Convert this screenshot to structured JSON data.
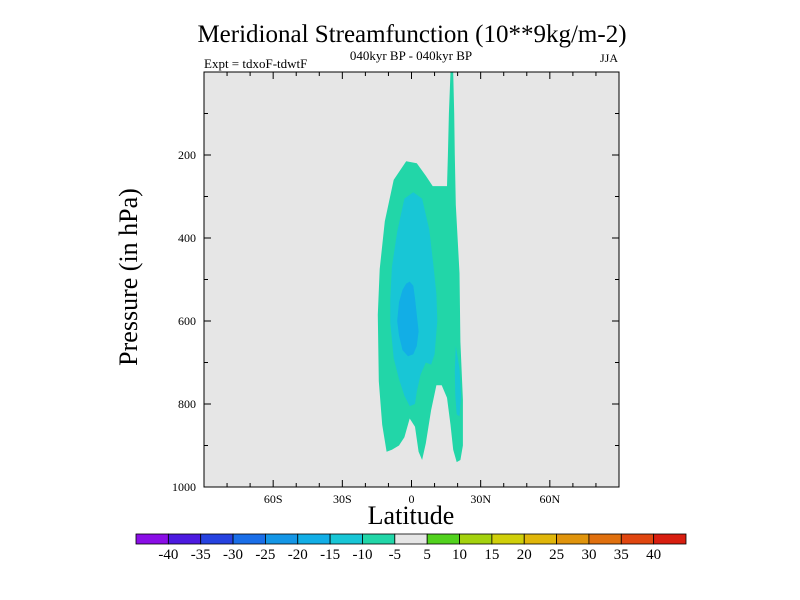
{
  "chart_data": {
    "type": "contour",
    "title": "Meridional Streamfunction (10**9kg/m-2)",
    "subtitle_center": "040kyr BP - 040kyr BP",
    "subtitle_left": "Expt = tdxoF-tdwtF",
    "subtitle_right": "JJA",
    "xlabel": "Latitude",
    "ylabel": "Pressure (in hPa)",
    "xlim": [
      -90,
      90
    ],
    "ylim": [
      0,
      1000
    ],
    "y_reversed": true,
    "x_ticks": [
      {
        "value": -60,
        "label": "60S"
      },
      {
        "value": -30,
        "label": "30S"
      },
      {
        "value": 0,
        "label": "0"
      },
      {
        "value": 30,
        "label": "30N"
      },
      {
        "value": 60,
        "label": "60N"
      }
    ],
    "y_ticks": [
      {
        "value": 200,
        "label": "200"
      },
      {
        "value": 400,
        "label": "400"
      },
      {
        "value": 600,
        "label": "600"
      },
      {
        "value": 800,
        "label": "800"
      },
      {
        "value": 1000,
        "label": "1000"
      }
    ],
    "background_color": "#e6e6e6",
    "contour_regions": [
      {
        "level_range": "-10 to -5",
        "color": "#22d6a8",
        "polygon": [
          [
            -14.6,
            585
          ],
          [
            -13.8,
            475
          ],
          [
            -11.6,
            360
          ],
          [
            -7.7,
            260
          ],
          [
            -2.3,
            215
          ],
          [
            2.3,
            220
          ],
          [
            6.2,
            250
          ],
          [
            9.2,
            275
          ],
          [
            15.4,
            275
          ],
          [
            15.8,
            200
          ],
          [
            16.2,
            100
          ],
          [
            16.9,
            0
          ],
          [
            18.1,
            0
          ],
          [
            18.5,
            100
          ],
          [
            18.8,
            200
          ],
          [
            19.2,
            320
          ],
          [
            20.8,
            485
          ],
          [
            21.2,
            650
          ],
          [
            22.3,
            790
          ],
          [
            22.3,
            900
          ],
          [
            21.2,
            935
          ],
          [
            19.6,
            940
          ],
          [
            18.1,
            910
          ],
          [
            16.9,
            850
          ],
          [
            15.4,
            785
          ],
          [
            13.1,
            755
          ],
          [
            10.8,
            755
          ],
          [
            8.5,
            815
          ],
          [
            6.2,
            895
          ],
          [
            4.6,
            935
          ],
          [
            3.1,
            915
          ],
          [
            1.5,
            855
          ],
          [
            -0.8,
            835
          ],
          [
            -3.1,
            880
          ],
          [
            -5.4,
            900
          ],
          [
            -8.5,
            910
          ],
          [
            -10.8,
            915
          ],
          [
            -12.7,
            850
          ],
          [
            -14.2,
            745
          ]
        ]
      },
      {
        "level_range": "-15 to -10",
        "color": "#18c6d6",
        "polygon": [
          [
            -9.2,
            605
          ],
          [
            -9.2,
            545
          ],
          [
            -8.5,
            470
          ],
          [
            -6.2,
            385
          ],
          [
            -3.1,
            305
          ],
          [
            0.8,
            290
          ],
          [
            4.6,
            305
          ],
          [
            7.7,
            380
          ],
          [
            9.6,
            470
          ],
          [
            10.8,
            535
          ],
          [
            11.2,
            600
          ],
          [
            10.0,
            680
          ],
          [
            8.5,
            705
          ],
          [
            6.2,
            700
          ],
          [
            3.9,
            730
          ],
          [
            2.3,
            770
          ],
          [
            1.5,
            800
          ],
          [
            -0.8,
            805
          ],
          [
            -3.1,
            780
          ],
          [
            -5.4,
            740
          ],
          [
            -7.7,
            690
          ]
        ]
      },
      {
        "level_range": "-20 to -15",
        "color": "#12aee6",
        "polygon": [
          [
            -6.2,
            600
          ],
          [
            -5.4,
            555
          ],
          [
            -3.9,
            525
          ],
          [
            -2.3,
            510
          ],
          [
            -0.8,
            505
          ],
          [
            0.8,
            515
          ],
          [
            1.5,
            545
          ],
          [
            2.3,
            585
          ],
          [
            3.1,
            625
          ],
          [
            2.3,
            660
          ],
          [
            0.8,
            680
          ],
          [
            -1.5,
            685
          ],
          [
            -3.9,
            670
          ],
          [
            -5.4,
            635
          ]
        ]
      },
      {
        "level_range": "-15 to -10",
        "color": "#18c6d6",
        "polygon": [
          [
            19.2,
            660
          ],
          [
            20.8,
            715
          ],
          [
            21.5,
            780
          ],
          [
            20.8,
            830
          ],
          [
            19.6,
            825
          ],
          [
            19.0,
            780
          ],
          [
            18.8,
            720
          ]
        ]
      }
    ],
    "colorbar": {
      "levels": [
        "-40",
        "-35",
        "-30",
        "-25",
        "-20",
        "-15",
        "-10",
        "-5",
        "5",
        "10",
        "15",
        "20",
        "25",
        "30",
        "35",
        "40"
      ],
      "colors": [
        "#8a0ee6",
        "#4c1ae0",
        "#2642e0",
        "#1a6ee8",
        "#1496e6",
        "#12aee6",
        "#18c6d6",
        "#22d6a8",
        "#e6e6e6",
        "#52d21e",
        "#a4d20e",
        "#d0cf0a",
        "#e0b60a",
        "#e0940c",
        "#e0700e",
        "#e04610",
        "#d81e10"
      ]
    }
  }
}
